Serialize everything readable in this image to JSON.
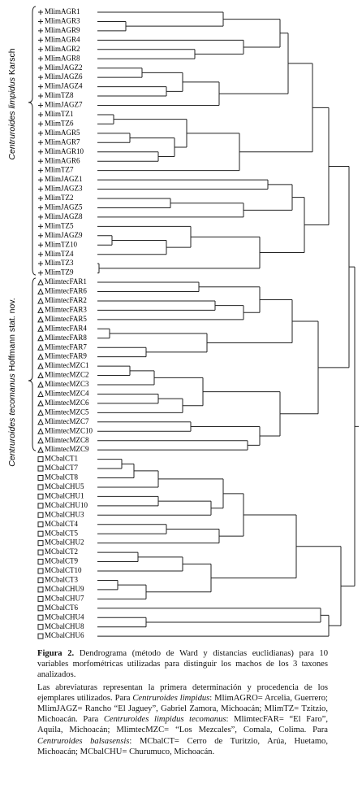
{
  "groups": [
    {
      "runs": [
        {
          "text": "Centruroides limpidus",
          "style": "italic"
        },
        {
          "text": " Karsch",
          "style": "normal"
        }
      ]
    },
    {
      "runs": [
        {
          "text": "Centruroides tecomanus",
          "style": "italic"
        },
        {
          "text": " Hoffmann stat. nov.",
          "style": "normal"
        }
      ]
    }
  ],
  "leaves": [
    "MlimAGR1",
    "MlimAGR3",
    "MlimAGR9",
    "MlimAGR4",
    "MlimAGR2",
    "MlimAGR8",
    "MlimJAGZ2",
    "MlimJAGZ6",
    "MlimJAGZ4",
    "MlimTZ8",
    "MlimJAGZ7",
    "MlimTZ1",
    "MlimTZ6",
    "MlimAGR5",
    "MlimAGR7",
    "MlimAGR10",
    "MlimAGR6",
    "MlimTZ7",
    "MlimJAGZ1",
    "MlimJAGZ3",
    "MlimTZ2",
    "MlimJAGZ5",
    "MlimJAGZ8",
    "MlimTZ5",
    "MlimJAGZ9",
    "MlimTZ10",
    "MlimTZ4",
    "MlimTZ3",
    "MlimTZ9",
    "MlimtecFAR1",
    "MlimtecFAR6",
    "MlimtecFAR2",
    "MlimtecFAR3",
    "MlimtecFAR5",
    "MlimtecFAR4",
    "MlimtecFAR8",
    "MlimtecFAR7",
    "MlimtecFAR9",
    "MlimtecMZC1",
    "MlimtecMZC2",
    "MlimtecMZC3",
    "MlimtecMZC4",
    "MlimtecMZC6",
    "MlimtecMZC5",
    "MlimtecMZC7",
    "MlimtecMZC10",
    "MlimtecMZC8",
    "MlimtecMZC9",
    "MCbalCT1",
    "MCbalCT7",
    "MCbalCT8",
    "MCbalCHU5",
    "MCbalCHU1",
    "MCbalCHU10",
    "MCbalCHU3",
    "MCbalCT4",
    "MCbalCT5",
    "MCbalCHU2",
    "MCbalCT2",
    "MCbalCT9",
    "MCbalCT10",
    "MCbalCT3",
    "MCbalCHU9",
    "MCbalCHU7",
    "MCbalCT6",
    "MCbalCHU4",
    "MCbalCHU8",
    "MCbalCHU6"
  ],
  "caption": {
    "paragraphs": [
      [
        {
          "text": "Figura 2.",
          "style": "bold"
        },
        {
          "text": " Dendrograma (método de Ward y distancias euclidianas) para 10 variables morfométricas utilizadas para distinguir los machos de los 3 taxones analizados.",
          "style": "normal"
        }
      ],
      [
        {
          "text": "Las abreviaturas representan la primera determinación y procedencia de los ejemplares utilizados. Para ",
          "style": "normal"
        },
        {
          "text": "Centruroides limpidus",
          "style": "italic"
        },
        {
          "text": ": MlimAGRO= Arcelia, Guerrero; MlimJAGZ= Rancho “El Jaguey”, Gabriel Zamora, Michoacán; MlimTZ= Tzitzio, Michoacán. Para ",
          "style": "normal"
        },
        {
          "text": "Centruroides limpidus tecomanus",
          "style": "italic"
        },
        {
          "text": ": MlimtecFAR= “El Faro”, Aquila, Michoacán; MlimtecMZC= “Los Mezcales”, Comala, Colima. Para ",
          "style": "normal"
        },
        {
          "text": "Centruroides balsasensis",
          "style": "italic"
        },
        {
          "text": ": MCbalCT= Cerro de Turitzio, Arúa, Huetamo, Michoacán; MCbalCHU= Churumuco, Michoacán.",
          "style": "normal"
        }
      ]
    ]
  }
}
